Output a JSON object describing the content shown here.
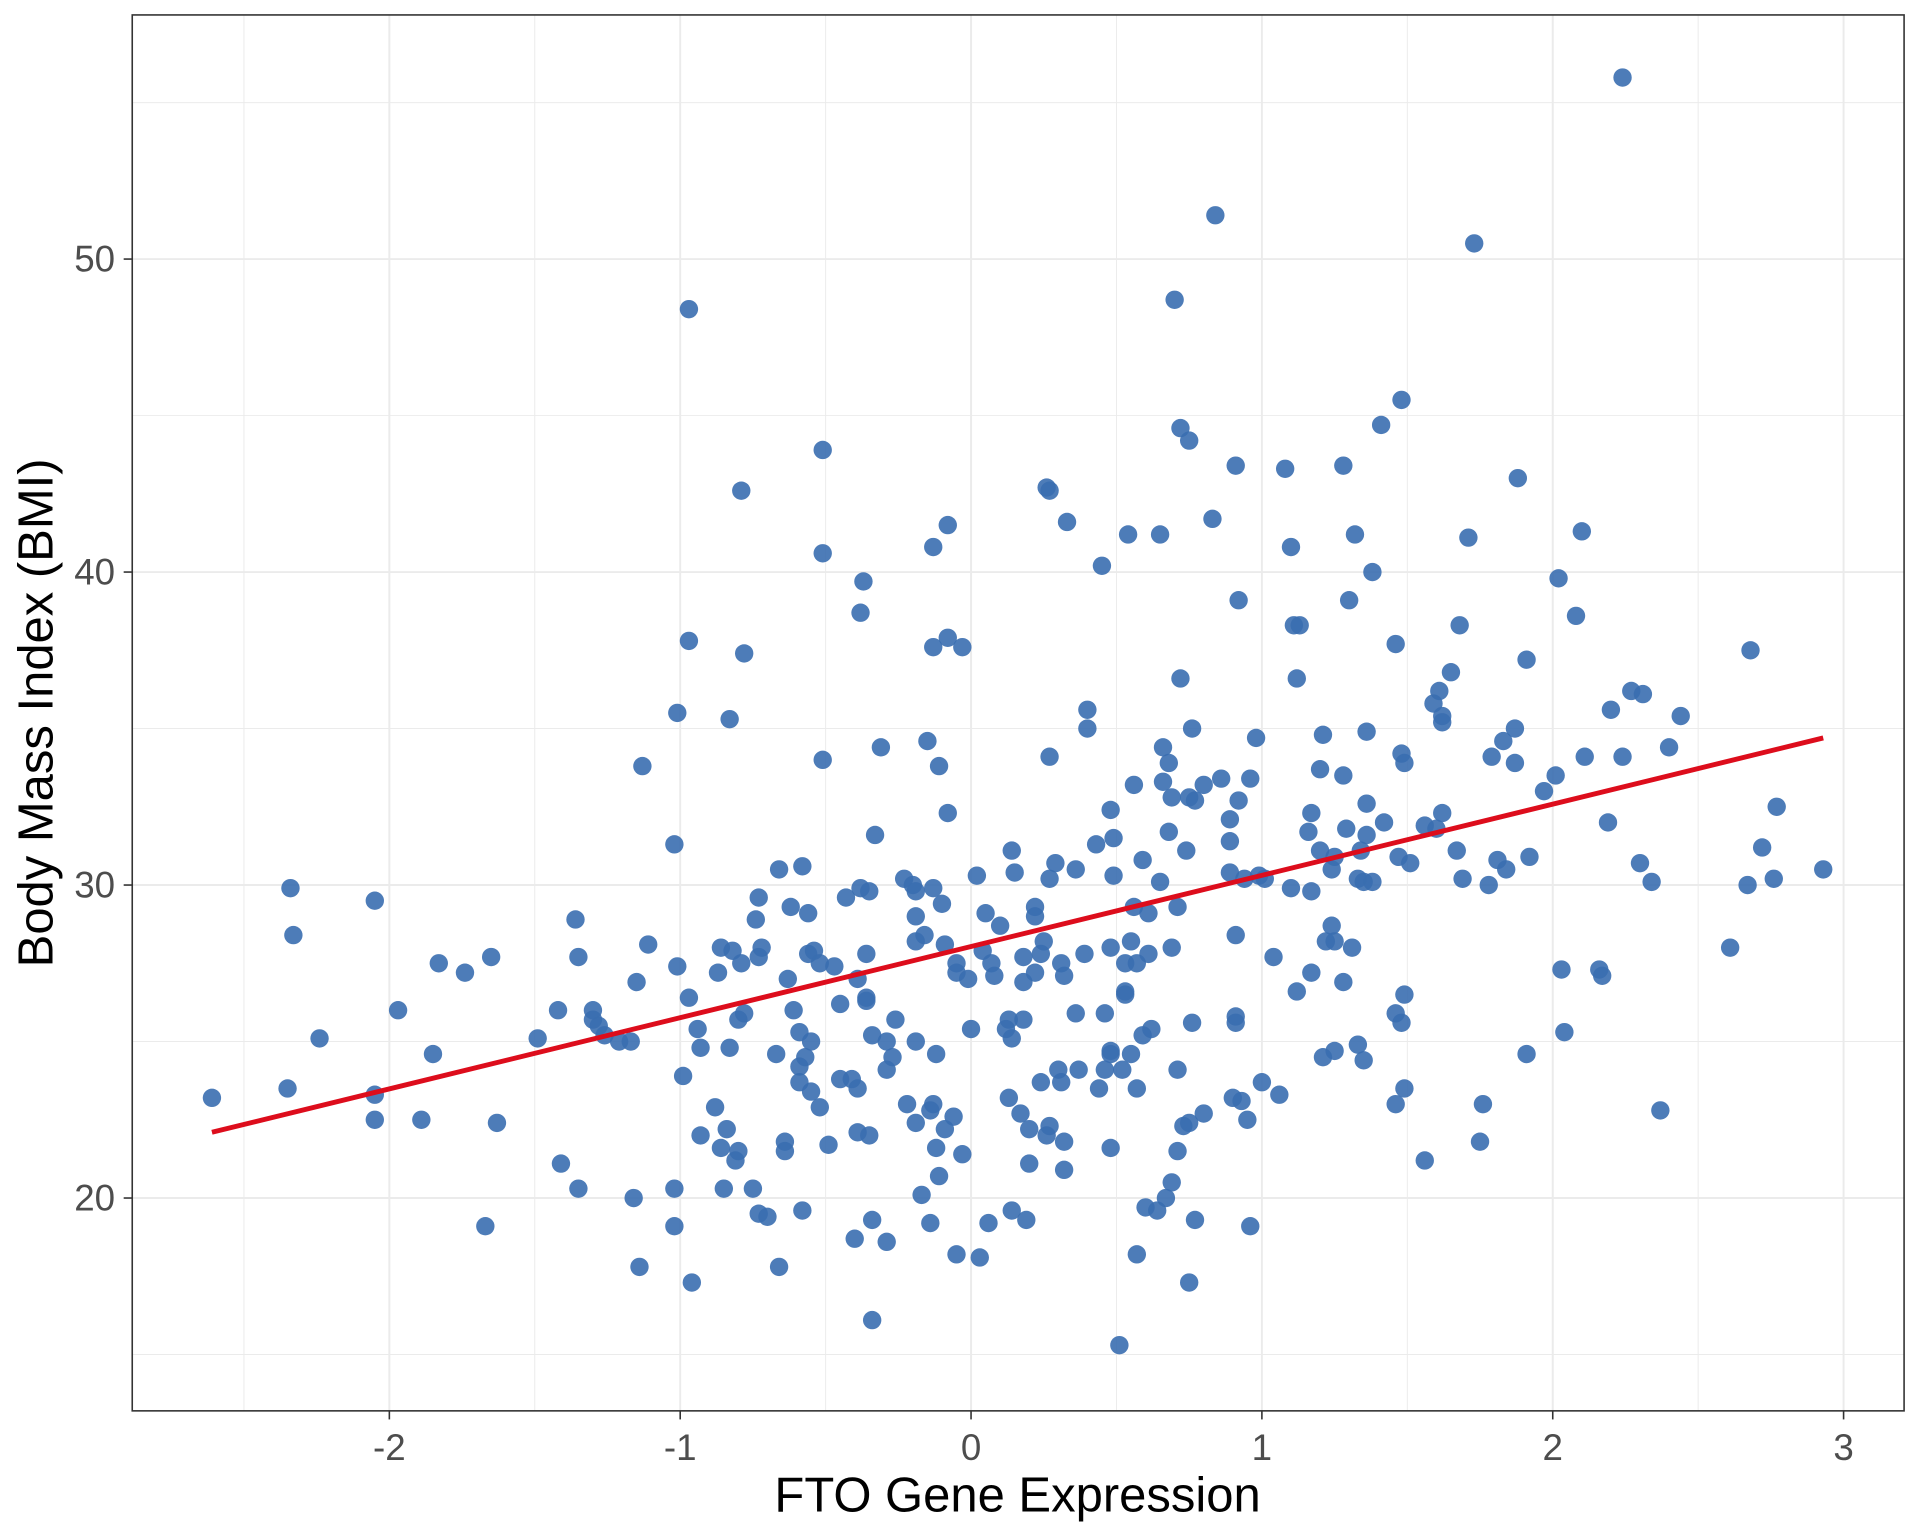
{
  "chart_data": {
    "type": "scatter",
    "title": "",
    "xlabel": "FTO Gene Expression",
    "ylabel": "Body Mass Index (BMI)",
    "xlim": [
      -2.884,
      3.208
    ],
    "ylim": [
      13.2,
      57.8
    ],
    "x_ticks": [
      -2,
      -1,
      0,
      1,
      2,
      3
    ],
    "y_ticks": [
      20,
      30,
      40,
      50
    ],
    "x_tick_labels": [
      "-2",
      "-1",
      "0",
      "1",
      "2",
      "3"
    ],
    "y_tick_labels": [
      "20",
      "30",
      "40",
      "50"
    ],
    "grid": true,
    "legend": "none",
    "point_color": "#3a6eb0",
    "line_color": "#dd0d1c",
    "regression_line": {
      "x": [
        -2.61,
        2.93
      ],
      "y": [
        22.1,
        34.7
      ]
    },
    "points": [
      [
        -2.61,
        23.2
      ],
      [
        -2.35,
        23.5
      ],
      [
        -2.34,
        29.9
      ],
      [
        -2.33,
        28.4
      ],
      [
        -2.24,
        25.1
      ],
      [
        -2.05,
        29.5
      ],
      [
        -2.05,
        23.3
      ],
      [
        -2.05,
        22.5
      ],
      [
        -1.97,
        26.0
      ],
      [
        -1.89,
        22.5
      ],
      [
        -1.85,
        24.6
      ],
      [
        -1.83,
        27.5
      ],
      [
        -1.74,
        27.2
      ],
      [
        -1.67,
        19.1
      ],
      [
        -1.65,
        27.7
      ],
      [
        -1.63,
        22.4
      ],
      [
        -1.49,
        25.1
      ],
      [
        -1.42,
        26.0
      ],
      [
        -1.41,
        21.1
      ],
      [
        -1.36,
        28.9
      ],
      [
        -1.35,
        20.3
      ],
      [
        -1.35,
        27.7
      ],
      [
        -1.3,
        26.0
      ],
      [
        -1.3,
        25.7
      ],
      [
        -1.28,
        25.5
      ],
      [
        -1.26,
        25.2
      ],
      [
        -1.21,
        25.0
      ],
      [
        -1.17,
        25.0
      ],
      [
        -1.16,
        20.0
      ],
      [
        -1.15,
        26.9
      ],
      [
        -1.14,
        17.8
      ],
      [
        -1.13,
        33.8
      ],
      [
        -1.11,
        28.1
      ],
      [
        -1.02,
        20.3
      ],
      [
        -1.02,
        19.1
      ],
      [
        -1.02,
        31.3
      ],
      [
        -1.01,
        35.5
      ],
      [
        -1.01,
        27.4
      ],
      [
        -0.99,
        23.9
      ],
      [
        -0.97,
        48.4
      ],
      [
        -0.97,
        37.8
      ],
      [
        -0.97,
        26.4
      ],
      [
        -0.96,
        17.3
      ],
      [
        -0.94,
        25.4
      ],
      [
        -0.93,
        24.8
      ],
      [
        -0.93,
        22.0
      ],
      [
        -0.88,
        22.9
      ],
      [
        -0.87,
        27.2
      ],
      [
        -0.86,
        28.0
      ],
      [
        -0.86,
        21.6
      ],
      [
        -0.85,
        20.3
      ],
      [
        -0.84,
        22.2
      ],
      [
        -0.83,
        35.3
      ],
      [
        -0.83,
        24.8
      ],
      [
        -0.82,
        27.9
      ],
      [
        -0.81,
        21.2
      ],
      [
        -0.8,
        21.5
      ],
      [
        -0.8,
        25.7
      ],
      [
        -0.79,
        27.5
      ],
      [
        -0.79,
        42.6
      ],
      [
        -0.78,
        25.9
      ],
      [
        -0.78,
        37.4
      ],
      [
        -0.75,
        20.3
      ],
      [
        -0.74,
        28.9
      ],
      [
        -0.73,
        19.5
      ],
      [
        -0.73,
        29.6
      ],
      [
        -0.73,
        27.7
      ],
      [
        -0.72,
        28.0
      ],
      [
        -0.7,
        19.4
      ],
      [
        -0.67,
        24.6
      ],
      [
        -0.66,
        30.5
      ],
      [
        -0.66,
        17.8
      ],
      [
        -0.64,
        21.8
      ],
      [
        -0.64,
        21.5
      ],
      [
        -0.63,
        27.0
      ],
      [
        -0.62,
        29.3
      ],
      [
        -0.61,
        26.0
      ],
      [
        -0.59,
        24.2
      ],
      [
        -0.59,
        23.7
      ],
      [
        -0.59,
        25.3
      ],
      [
        -0.58,
        30.6
      ],
      [
        -0.58,
        19.6
      ],
      [
        -0.57,
        24.5
      ],
      [
        -0.56,
        27.8
      ],
      [
        -0.56,
        29.1
      ],
      [
        -0.55,
        25.0
      ],
      [
        -0.55,
        23.4
      ],
      [
        -0.54,
        27.9
      ],
      [
        -0.52,
        22.9
      ],
      [
        -0.51,
        43.9
      ],
      [
        -0.51,
        40.6
      ],
      [
        -0.51,
        34.0
      ],
      [
        -0.52,
        27.5
      ],
      [
        -0.49,
        21.7
      ],
      [
        -0.47,
        27.4
      ],
      [
        -0.45,
        26.2
      ],
      [
        -0.45,
        23.8
      ],
      [
        -0.43,
        29.6
      ],
      [
        -0.41,
        23.8
      ],
      [
        -0.4,
        18.7
      ],
      [
        -0.39,
        27.0
      ],
      [
        -0.39,
        23.5
      ],
      [
        -0.39,
        22.1
      ],
      [
        -0.38,
        38.7
      ],
      [
        -0.38,
        29.9
      ],
      [
        -0.37,
        39.7
      ],
      [
        -0.36,
        26.4
      ],
      [
        -0.36,
        26.3
      ],
      [
        -0.36,
        27.8
      ],
      [
        -0.35,
        29.8
      ],
      [
        -0.35,
        22.0
      ],
      [
        -0.34,
        19.3
      ],
      [
        -0.34,
        25.2
      ],
      [
        -0.34,
        16.1
      ],
      [
        -0.33,
        31.6
      ],
      [
        -0.31,
        34.4
      ],
      [
        -0.29,
        25.0
      ],
      [
        -0.29,
        24.1
      ],
      [
        -0.29,
        18.6
      ],
      [
        -0.27,
        24.5
      ],
      [
        -0.26,
        25.7
      ],
      [
        -0.23,
        30.2
      ],
      [
        -0.22,
        23.0
      ],
      [
        -0.2,
        30.0
      ],
      [
        -0.19,
        28.2
      ],
      [
        -0.19,
        29.8
      ],
      [
        -0.19,
        22.4
      ],
      [
        -0.19,
        29.0
      ],
      [
        -0.19,
        25.0
      ],
      [
        -0.17,
        20.1
      ],
      [
        -0.16,
        28.4
      ],
      [
        -0.15,
        34.6
      ],
      [
        -0.14,
        22.8
      ],
      [
        -0.14,
        19.2
      ],
      [
        -0.13,
        40.8
      ],
      [
        -0.13,
        37.6
      ],
      [
        -0.13,
        23.0
      ],
      [
        -0.13,
        29.9
      ],
      [
        -0.12,
        24.6
      ],
      [
        -0.12,
        21.6
      ],
      [
        -0.11,
        33.8
      ],
      [
        -0.11,
        20.7
      ],
      [
        -0.1,
        29.4
      ],
      [
        -0.09,
        22.2
      ],
      [
        -0.09,
        28.1
      ],
      [
        -0.08,
        32.3
      ],
      [
        -0.08,
        41.5
      ],
      [
        -0.08,
        37.9
      ],
      [
        -0.06,
        22.6
      ],
      [
        -0.05,
        18.2
      ],
      [
        -0.05,
        27.2
      ],
      [
        -0.05,
        27.5
      ],
      [
        -0.03,
        37.6
      ],
      [
        -0.03,
        21.4
      ],
      [
        -0.01,
        27.0
      ],
      [
        0.0,
        25.4
      ],
      [
        0.02,
        30.3
      ],
      [
        0.03,
        18.1
      ],
      [
        0.04,
        27.9
      ],
      [
        0.05,
        29.1
      ],
      [
        0.06,
        19.2
      ],
      [
        0.07,
        27.5
      ],
      [
        0.08,
        27.1
      ],
      [
        0.1,
        28.7
      ],
      [
        0.12,
        25.4
      ],
      [
        0.13,
        23.2
      ],
      [
        0.13,
        25.7
      ],
      [
        0.14,
        31.1
      ],
      [
        0.14,
        25.1
      ],
      [
        0.14,
        19.6
      ],
      [
        0.15,
        30.4
      ],
      [
        0.17,
        22.7
      ],
      [
        0.18,
        26.9
      ],
      [
        0.18,
        27.7
      ],
      [
        0.18,
        25.7
      ],
      [
        0.19,
        19.3
      ],
      [
        0.2,
        22.2
      ],
      [
        0.2,
        21.1
      ],
      [
        0.22,
        29.0
      ],
      [
        0.22,
        29.3
      ],
      [
        0.22,
        27.2
      ],
      [
        0.24,
        23.7
      ],
      [
        0.24,
        27.8
      ],
      [
        0.25,
        28.2
      ],
      [
        0.26,
        22.0
      ],
      [
        0.26,
        42.7
      ],
      [
        0.27,
        42.6
      ],
      [
        0.27,
        30.2
      ],
      [
        0.27,
        22.3
      ],
      [
        0.27,
        34.1
      ],
      [
        0.29,
        30.7
      ],
      [
        0.3,
        24.1
      ],
      [
        0.31,
        27.5
      ],
      [
        0.31,
        23.7
      ],
      [
        0.32,
        21.8
      ],
      [
        0.32,
        20.9
      ],
      [
        0.32,
        27.1
      ],
      [
        0.33,
        41.6
      ],
      [
        0.36,
        25.9
      ],
      [
        0.36,
        30.5
      ],
      [
        0.37,
        24.1
      ],
      [
        0.39,
        27.8
      ],
      [
        0.4,
        35.6
      ],
      [
        0.4,
        35.0
      ],
      [
        0.43,
        31.3
      ],
      [
        0.44,
        23.5
      ],
      [
        0.45,
        40.2
      ],
      [
        0.46,
        25.9
      ],
      [
        0.46,
        24.1
      ],
      [
        0.48,
        28.0
      ],
      [
        0.48,
        21.6
      ],
      [
        0.48,
        24.6
      ],
      [
        0.48,
        32.4
      ],
      [
        0.48,
        24.7
      ],
      [
        0.49,
        31.5
      ],
      [
        0.49,
        30.3
      ],
      [
        0.51,
        15.3
      ],
      [
        0.52,
        24.1
      ],
      [
        0.53,
        26.6
      ],
      [
        0.53,
        26.5
      ],
      [
        0.53,
        27.5
      ],
      [
        0.54,
        41.2
      ],
      [
        0.55,
        24.6
      ],
      [
        0.55,
        28.2
      ],
      [
        0.56,
        33.2
      ],
      [
        0.56,
        29.3
      ],
      [
        0.57,
        23.5
      ],
      [
        0.57,
        18.2
      ],
      [
        0.57,
        27.5
      ],
      [
        0.59,
        25.2
      ],
      [
        0.59,
        30.8
      ],
      [
        0.6,
        19.7
      ],
      [
        0.61,
        27.8
      ],
      [
        0.61,
        29.1
      ],
      [
        0.62,
        25.4
      ],
      [
        0.64,
        19.6
      ],
      [
        0.65,
        41.2
      ],
      [
        0.65,
        30.1
      ],
      [
        0.66,
        34.4
      ],
      [
        0.66,
        33.3
      ],
      [
        0.67,
        20.0
      ],
      [
        0.68,
        33.9
      ],
      [
        0.68,
        31.7
      ],
      [
        0.69,
        32.8
      ],
      [
        0.69,
        20.5
      ],
      [
        0.69,
        28.0
      ],
      [
        0.7,
        48.7
      ],
      [
        0.71,
        24.1
      ],
      [
        0.71,
        29.3
      ],
      [
        0.71,
        21.5
      ],
      [
        0.72,
        36.6
      ],
      [
        0.72,
        44.6
      ],
      [
        0.73,
        22.3
      ],
      [
        0.74,
        31.1
      ],
      [
        0.75,
        17.3
      ],
      [
        0.75,
        32.8
      ],
      [
        0.75,
        44.2
      ],
      [
        0.75,
        22.4
      ],
      [
        0.76,
        25.6
      ],
      [
        0.76,
        35.0
      ],
      [
        0.77,
        19.3
      ],
      [
        0.77,
        32.7
      ],
      [
        0.8,
        22.7
      ],
      [
        0.8,
        33.2
      ],
      [
        0.83,
        41.7
      ],
      [
        0.84,
        51.4
      ],
      [
        0.86,
        33.4
      ],
      [
        0.89,
        31.4
      ],
      [
        0.89,
        30.4
      ],
      [
        0.89,
        32.1
      ],
      [
        0.9,
        23.2
      ],
      [
        0.91,
        25.8
      ],
      [
        0.91,
        28.4
      ],
      [
        0.91,
        25.6
      ],
      [
        0.91,
        43.4
      ],
      [
        0.92,
        32.7
      ],
      [
        0.92,
        39.1
      ],
      [
        0.93,
        23.1
      ],
      [
        0.94,
        30.2
      ],
      [
        0.95,
        22.5
      ],
      [
        0.96,
        33.4
      ],
      [
        0.96,
        19.1
      ],
      [
        0.98,
        34.7
      ],
      [
        0.99,
        30.3
      ],
      [
        1.01,
        30.2
      ],
      [
        1.0,
        23.7
      ],
      [
        1.04,
        27.7
      ],
      [
        1.06,
        23.3
      ],
      [
        1.08,
        43.3
      ],
      [
        1.1,
        29.9
      ],
      [
        1.1,
        40.8
      ],
      [
        1.11,
        38.3
      ],
      [
        1.12,
        26.6
      ],
      [
        1.12,
        36.6
      ],
      [
        1.13,
        38.3
      ],
      [
        1.16,
        31.7
      ],
      [
        1.17,
        29.8
      ],
      [
        1.17,
        27.2
      ],
      [
        1.17,
        32.3
      ],
      [
        1.2,
        33.7
      ],
      [
        1.2,
        31.1
      ],
      [
        1.21,
        34.8
      ],
      [
        1.21,
        24.5
      ],
      [
        1.22,
        28.2
      ],
      [
        1.24,
        30.5
      ],
      [
        1.24,
        28.7
      ],
      [
        1.25,
        30.9
      ],
      [
        1.25,
        24.7
      ],
      [
        1.25,
        28.2
      ],
      [
        1.28,
        33.5
      ],
      [
        1.28,
        43.4
      ],
      [
        1.28,
        26.9
      ],
      [
        1.29,
        31.8
      ],
      [
        1.3,
        39.1
      ],
      [
        1.31,
        28.0
      ],
      [
        1.32,
        41.2
      ],
      [
        1.33,
        30.2
      ],
      [
        1.33,
        24.9
      ],
      [
        1.34,
        31.1
      ],
      [
        1.35,
        24.4
      ],
      [
        1.35,
        30.1
      ],
      [
        1.36,
        31.6
      ],
      [
        1.36,
        34.9
      ],
      [
        1.36,
        32.6
      ],
      [
        1.38,
        40.0
      ],
      [
        1.38,
        30.1
      ],
      [
        1.41,
        44.7
      ],
      [
        1.42,
        32.0
      ],
      [
        1.46,
        37.7
      ],
      [
        1.46,
        25.9
      ],
      [
        1.46,
        23.0
      ],
      [
        1.47,
        30.9
      ],
      [
        1.48,
        45.5
      ],
      [
        1.48,
        34.2
      ],
      [
        1.48,
        25.6
      ],
      [
        1.49,
        23.5
      ],
      [
        1.49,
        26.5
      ],
      [
        1.49,
        33.9
      ],
      [
        1.51,
        30.7
      ],
      [
        1.56,
        21.2
      ],
      [
        1.56,
        31.9
      ],
      [
        1.59,
        35.8
      ],
      [
        1.6,
        31.8
      ],
      [
        1.61,
        36.2
      ],
      [
        1.62,
        35.4
      ],
      [
        1.62,
        35.2
      ],
      [
        1.62,
        32.3
      ],
      [
        1.65,
        36.8
      ],
      [
        1.67,
        31.1
      ],
      [
        1.68,
        38.3
      ],
      [
        1.69,
        30.2
      ],
      [
        1.71,
        41.1
      ],
      [
        1.73,
        50.5
      ],
      [
        1.75,
        21.8
      ],
      [
        1.76,
        23.0
      ],
      [
        1.78,
        30.0
      ],
      [
        1.79,
        34.1
      ],
      [
        1.81,
        30.8
      ],
      [
        1.83,
        34.6
      ],
      [
        1.84,
        30.5
      ],
      [
        1.87,
        33.9
      ],
      [
        1.87,
        35.0
      ],
      [
        1.88,
        43.0
      ],
      [
        1.91,
        37.2
      ],
      [
        1.91,
        24.6
      ],
      [
        1.92,
        30.9
      ],
      [
        1.97,
        33.0
      ],
      [
        2.01,
        33.5
      ],
      [
        2.02,
        39.8
      ],
      [
        2.03,
        27.3
      ],
      [
        2.04,
        25.3
      ],
      [
        2.08,
        38.6
      ],
      [
        2.1,
        41.3
      ],
      [
        2.11,
        34.1
      ],
      [
        2.16,
        27.3
      ],
      [
        2.17,
        27.1
      ],
      [
        2.19,
        32.0
      ],
      [
        2.2,
        35.6
      ],
      [
        2.24,
        34.1
      ],
      [
        2.24,
        55.8
      ],
      [
        2.27,
        36.2
      ],
      [
        2.3,
        30.7
      ],
      [
        2.31,
        36.1
      ],
      [
        2.34,
        30.1
      ],
      [
        2.37,
        22.8
      ],
      [
        2.4,
        34.4
      ],
      [
        2.44,
        35.4
      ],
      [
        2.61,
        28.0
      ],
      [
        2.67,
        30.0
      ],
      [
        2.68,
        37.5
      ],
      [
        2.72,
        31.2
      ],
      [
        2.76,
        30.2
      ],
      [
        2.77,
        32.5
      ],
      [
        2.93,
        30.5
      ]
    ]
  }
}
